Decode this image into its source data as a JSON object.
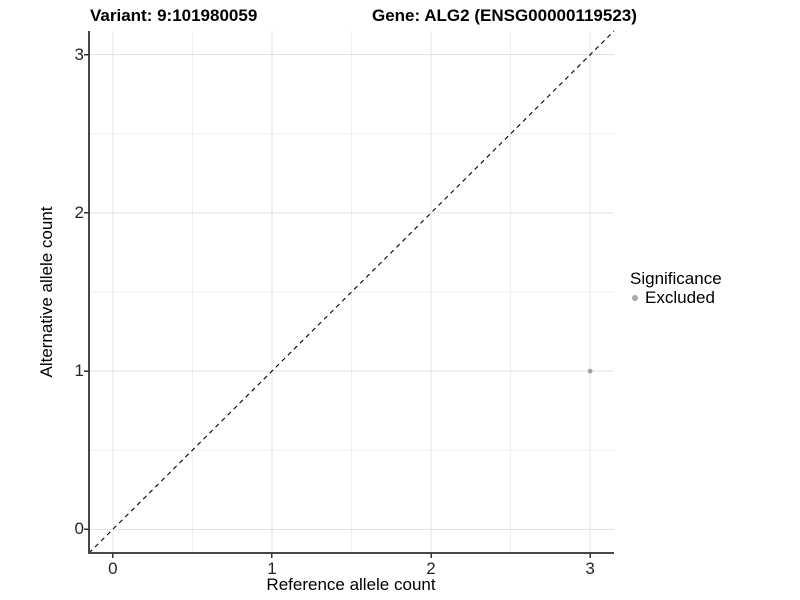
{
  "chart_data": {
    "type": "scatter",
    "title_left": "Variant: 9:101980059",
    "title_right": "Gene: ALG2 (ENSG00000119523)",
    "xlabel": "Reference allele count",
    "ylabel": "Alternative allele count",
    "xlim": [
      -0.15,
      3.15
    ],
    "ylim": [
      -0.15,
      3.15
    ],
    "x_ticks": [
      0,
      1,
      2,
      3
    ],
    "y_ticks": [
      0,
      1,
      2,
      3
    ],
    "x_minor_ticks": [
      0.5,
      1.5,
      2.5
    ],
    "y_minor_ticks": [
      0.5,
      1.5,
      2.5
    ],
    "grid": true,
    "series": [
      {
        "name": "Excluded",
        "color": "#a2a2a2",
        "points": [
          {
            "x": 3,
            "y": 1
          }
        ]
      }
    ],
    "reference_line": {
      "type": "identity",
      "from": [
        -0.15,
        -0.15
      ],
      "to": [
        3.15,
        3.15
      ],
      "style": "dashed",
      "color": "#000000"
    },
    "legend": {
      "title": "Significance",
      "position": "right",
      "entries": [
        {
          "label": "Excluded",
          "color": "#a9a9a9"
        }
      ]
    },
    "colors": {
      "major_grid": "#e3e3e3",
      "minor_grid": "#efefef",
      "axis_line": "#474747",
      "tick_mark": "#333333",
      "panel_background": "#ffffff"
    }
  }
}
